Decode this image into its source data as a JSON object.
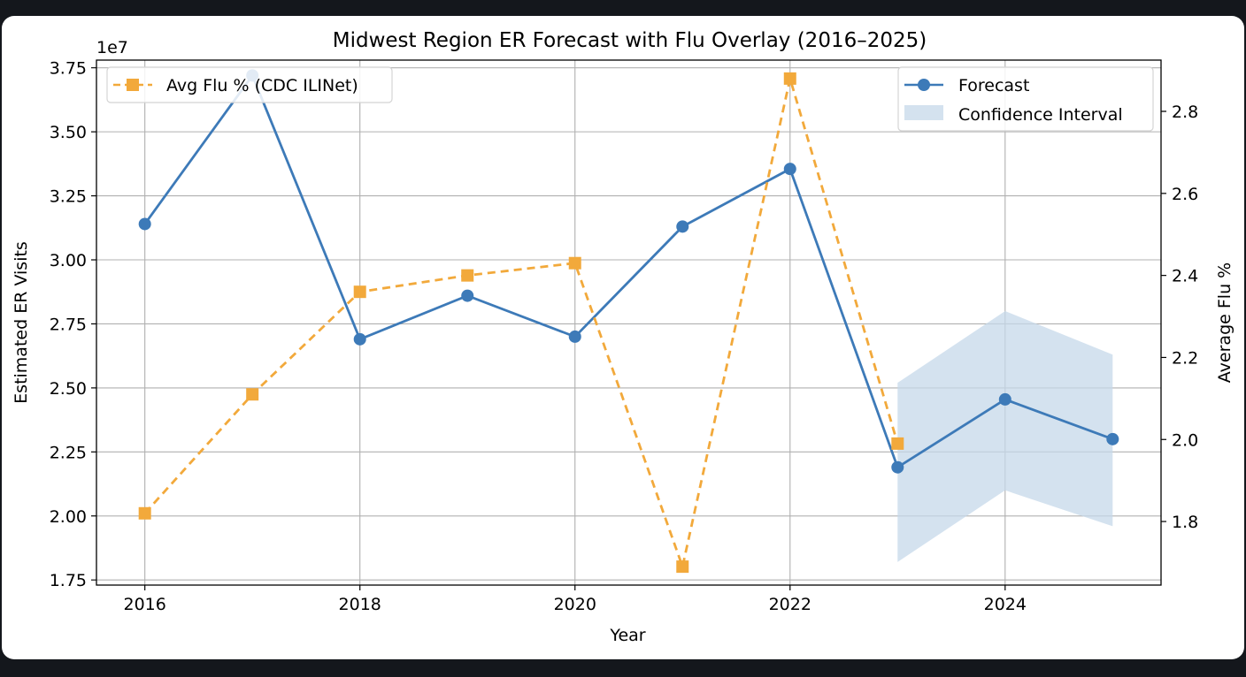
{
  "chart_data": {
    "type": "line",
    "title": "Midwest Region ER Forecast with Flu Overlay (2016–2025)",
    "xlabel": "Year",
    "ylabel": "Estimated ER Visits",
    "ylabel_right": "Average Flu %",
    "y_offset_label": "1e7",
    "xlim": [
      2015.55,
      2025.45
    ],
    "ylim": [
      1.73,
      3.78
    ],
    "ylim_right": [
      1.645,
      2.925
    ],
    "grid": true,
    "x_ticks": [
      2016,
      2018,
      2020,
      2022,
      2024
    ],
    "x_tick_labels": [
      "2016",
      "2018",
      "2020",
      "2022",
      "2024"
    ],
    "y_ticks": [
      1.75,
      2.0,
      2.25,
      2.5,
      2.75,
      3.0,
      3.25,
      3.5,
      3.75
    ],
    "y_tick_labels": [
      "1.75",
      "2.00",
      "2.25",
      "2.50",
      "2.75",
      "3.00",
      "3.25",
      "3.50",
      "3.75"
    ],
    "y_right_ticks": [
      1.8,
      2.0,
      2.2,
      2.4,
      2.6,
      2.8
    ],
    "y_right_tick_labels": [
      "1.8",
      "2.0",
      "2.2",
      "2.4",
      "2.6",
      "2.8"
    ],
    "series": [
      {
        "name": "Forecast",
        "axis": "left",
        "color": "#3d7ab8",
        "marker": "circle",
        "style": "solid",
        "x": [
          2016,
          2017,
          2018,
          2019,
          2020,
          2021,
          2022,
          2023,
          2024,
          2025
        ],
        "values": [
          3.14,
          3.72,
          2.69,
          2.86,
          2.7,
          3.13,
          3.355,
          2.19,
          2.455,
          2.3
        ]
      },
      {
        "name": "Avg Flu % (CDC ILINet)",
        "axis": "right",
        "color": "#f2a93b",
        "marker": "square",
        "style": "dashed",
        "x": [
          2016,
          2017,
          2018,
          2019,
          2020,
          2021,
          2022,
          2023
        ],
        "values": [
          1.82,
          2.11,
          2.36,
          2.4,
          2.43,
          1.69,
          2.88,
          1.99
        ]
      }
    ],
    "confidence_interval": {
      "name": "Confidence Interval",
      "color": "#c6d8ea",
      "x": [
        2023,
        2024,
        2025
      ],
      "lower": [
        1.82,
        2.1,
        1.96
      ],
      "upper": [
        2.52,
        2.8,
        2.63
      ]
    },
    "legends": [
      {
        "placement": "top-left",
        "entries": [
          "Avg Flu % (CDC ILINet)"
        ]
      },
      {
        "placement": "top-right",
        "entries": [
          "Forecast",
          "Confidence Interval"
        ]
      }
    ]
  }
}
